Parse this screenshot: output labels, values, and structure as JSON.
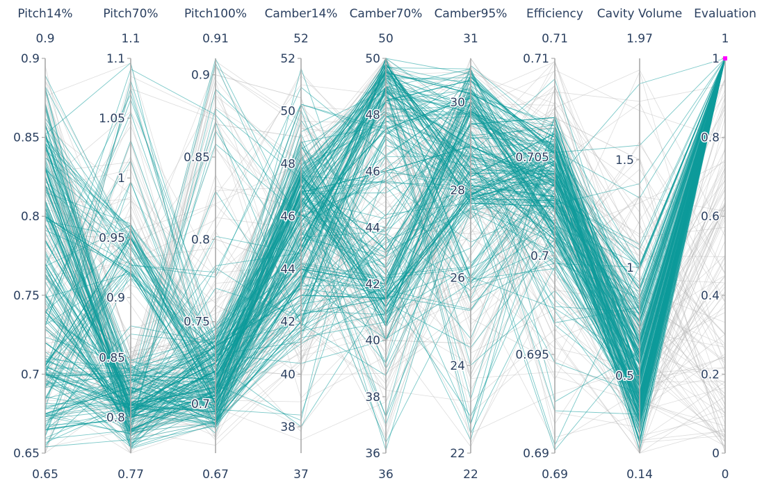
{
  "chart_data": {
    "type": "parallel_coordinates",
    "colors": {
      "selected": "#0d9a9a",
      "unselected": "#b4b4b4",
      "brush_marker": "#ff00ff",
      "text": "#2a3f5f",
      "axis": "#a9a9a9"
    },
    "selection_constraint": {
      "dimension": "Evaluation",
      "range": [
        1,
        1
      ]
    },
    "dimensions": [
      {
        "label": "Pitch14%",
        "range_min": "0.65",
        "range_max": "0.9",
        "min": 0.65,
        "max": 0.9,
        "ticks": [
          "0.65",
          "0.7",
          "0.75",
          "0.8",
          "0.85",
          "0.9"
        ]
      },
      {
        "label": "Pitch70%",
        "range_min": "0.77",
        "range_max": "1.1",
        "min": 0.77,
        "max": 1.1,
        "ticks": [
          "0.8",
          "0.85",
          "0.9",
          "0.95",
          "1",
          "1.05",
          "1.1"
        ]
      },
      {
        "label": "Pitch100%",
        "range_min": "0.67",
        "range_max": "0.91",
        "min": 0.67,
        "max": 0.91,
        "ticks": [
          "0.7",
          "0.75",
          "0.8",
          "0.85",
          "0.9"
        ]
      },
      {
        "label": "Camber14%",
        "range_min": "37",
        "range_max": "52",
        "min": 37,
        "max": 52,
        "ticks": [
          "38",
          "40",
          "42",
          "44",
          "46",
          "48",
          "50",
          "52"
        ]
      },
      {
        "label": "Camber70%",
        "range_min": "36",
        "range_max": "50",
        "min": 36,
        "max": 50,
        "ticks": [
          "36",
          "38",
          "40",
          "42",
          "44",
          "46",
          "48",
          "50"
        ]
      },
      {
        "label": "Camber95%",
        "range_min": "22",
        "range_max": "31",
        "min": 22,
        "max": 31,
        "ticks": [
          "22",
          "24",
          "26",
          "28",
          "30"
        ]
      },
      {
        "label": "Efficiency",
        "range_min": "0.69",
        "range_max": "0.71",
        "min": 0.69,
        "max": 0.71,
        "ticks": [
          "0.69",
          "0.695",
          "0.7",
          "0.705",
          "0.71"
        ]
      },
      {
        "label": "Cavity Volume",
        "range_min": "0.14",
        "range_max": "1.97",
        "min": 0.14,
        "max": 1.97,
        "ticks": [
          "0.5",
          "1",
          "1.5"
        ]
      },
      {
        "label": "Evaluation",
        "range_min": "0",
        "range_max": "1",
        "min": 0,
        "max": 1,
        "ticks": [
          "0",
          "0.2",
          "0.4",
          "0.6",
          "0.8",
          "1"
        ]
      }
    ],
    "representative_lines": [
      [
        0.665,
        0.8,
        0.705,
        47,
        49.8,
        28.1,
        0.703,
        0.35,
        1
      ],
      [
        0.7,
        0.81,
        0.71,
        46.5,
        49.5,
        30.2,
        0.706,
        0.5,
        1
      ],
      [
        0.795,
        0.81,
        0.725,
        44,
        42,
        29.8,
        0.7045,
        0.45,
        1
      ],
      [
        0.74,
        0.805,
        0.72,
        46.8,
        49.7,
        27.7,
        0.7025,
        0.6,
        1
      ],
      [
        0.705,
        0.95,
        0.7,
        45,
        48.5,
        30.5,
        0.7055,
        0.3,
        1
      ],
      [
        0.785,
        0.82,
        0.735,
        43,
        41.5,
        27.8,
        0.7028,
        0.75,
        1
      ],
      [
        0.81,
        0.8,
        0.72,
        47.2,
        40.5,
        30.0,
        0.701,
        0.55,
        1
      ],
      [
        0.845,
        0.835,
        0.715,
        46.2,
        48.8,
        29.0,
        0.7035,
        0.2,
        1
      ],
      [
        0.75,
        0.79,
        0.705,
        47,
        41.2,
        27.9,
        0.7048,
        0.4,
        1
      ],
      [
        0.72,
        0.81,
        0.695,
        43.5,
        49.8,
        28.3,
        0.7062,
        0.65,
        1
      ],
      [
        0.83,
        0.805,
        0.73,
        45.8,
        47.5,
        30.1,
        0.7015,
        0.28,
        1
      ],
      [
        0.675,
        0.825,
        0.69,
        42,
        49.0,
        27.8,
        0.7042,
        0.9,
        1
      ],
      [
        0.77,
        0.81,
        0.725,
        47.5,
        43.2,
        29.5,
        0.707,
        0.48,
        1
      ],
      [
        0.8,
        0.92,
        0.7,
        44.8,
        49.6,
        28.5,
        0.7008,
        0.33,
        1
      ],
      [
        0.825,
        0.805,
        0.72,
        46.9,
        46.0,
        29.0,
        0.7038,
        0.58,
        1
      ],
      [
        0.88,
        0.855,
        0.74,
        48.5,
        42.0,
        30.8,
        0.7058,
        0.8,
        0.15
      ],
      [
        0.78,
        0.845,
        0.9,
        50.5,
        40.0,
        24.5,
        0.7085,
        1.2,
        0.05
      ],
      [
        0.7,
        0.84,
        0.87,
        49.0,
        39.0,
        26.5,
        0.707,
        1.5,
        0.0
      ],
      [
        0.82,
        0.79,
        0.8,
        44.0,
        46.5,
        23.8,
        0.7025,
        0.9,
        0.1
      ],
      [
        0.73,
        0.78,
        0.76,
        41.0,
        44.0,
        27.0,
        0.7075,
        1.1,
        0.3
      ]
    ]
  }
}
